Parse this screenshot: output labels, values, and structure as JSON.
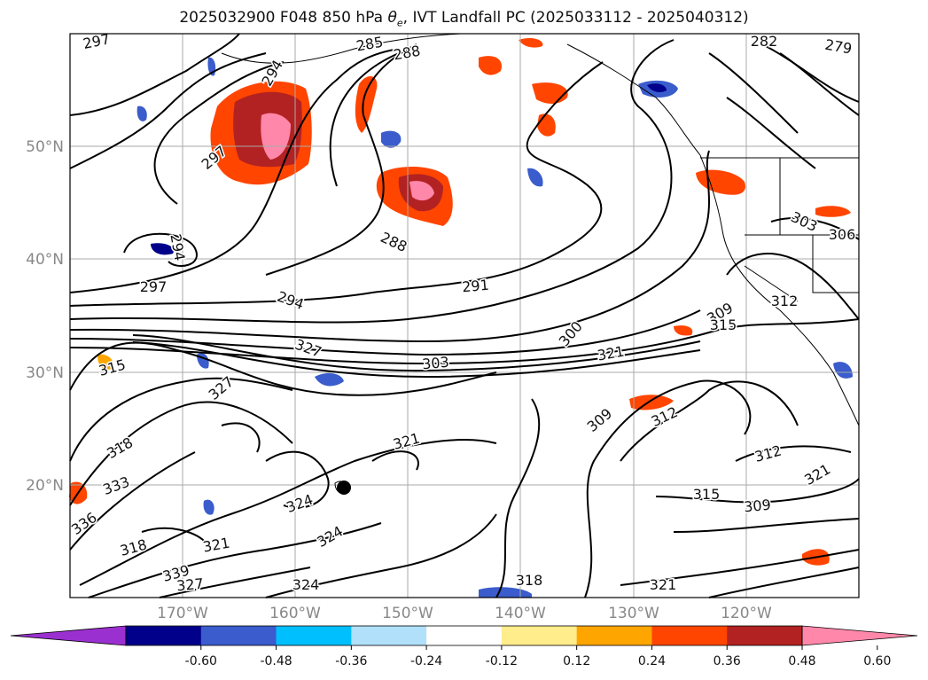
{
  "title": {
    "prefix": "2025032900 F048 850 hPa ",
    "theta_symbol": "θ",
    "theta_sub": "e",
    "suffix": ", IVT Landfall PC (2025033112 - 2025040312)"
  },
  "map": {
    "projection": "PlateCarree",
    "lon_range": [
      -180,
      -110
    ],
    "lat_range": [
      10,
      60
    ],
    "gridlines": true,
    "lat_labels": [
      "50°N",
      "40°N",
      "30°N",
      "20°N"
    ],
    "lon_labels": [
      "170°W",
      "160°W",
      "150°W",
      "140°W",
      "130°W",
      "120°W"
    ],
    "contour_variable": "850 hPa theta-e (K)",
    "contour_labels": [
      "297",
      "294",
      "285",
      "288",
      "282",
      "279",
      "297",
      "294",
      "288",
      "291",
      "303",
      "306",
      "297",
      "294",
      "312",
      "309",
      "300",
      "315",
      "303",
      "321",
      "315",
      "327",
      "318",
      "321",
      "309",
      "312",
      "333",
      "327",
      "312",
      "336",
      "324",
      "315",
      "309",
      "321",
      "318",
      "324",
      "321",
      "339",
      "327",
      "324",
      "318",
      "321"
    ]
  },
  "colorbar": {
    "ticks": [
      "-0.60",
      "-0.48",
      "-0.36",
      "-0.24",
      "-0.12",
      "0.12",
      "0.24",
      "0.36",
      "0.48",
      "0.60"
    ],
    "colors": [
      "#9b30d0",
      "#00008b",
      "#3a5ccc",
      "#00bfff",
      "#b0e0fa",
      "#ffffff",
      "#ffec8b",
      "#ffa500",
      "#ff4500",
      "#b22222",
      "#ff88aa"
    ]
  }
}
